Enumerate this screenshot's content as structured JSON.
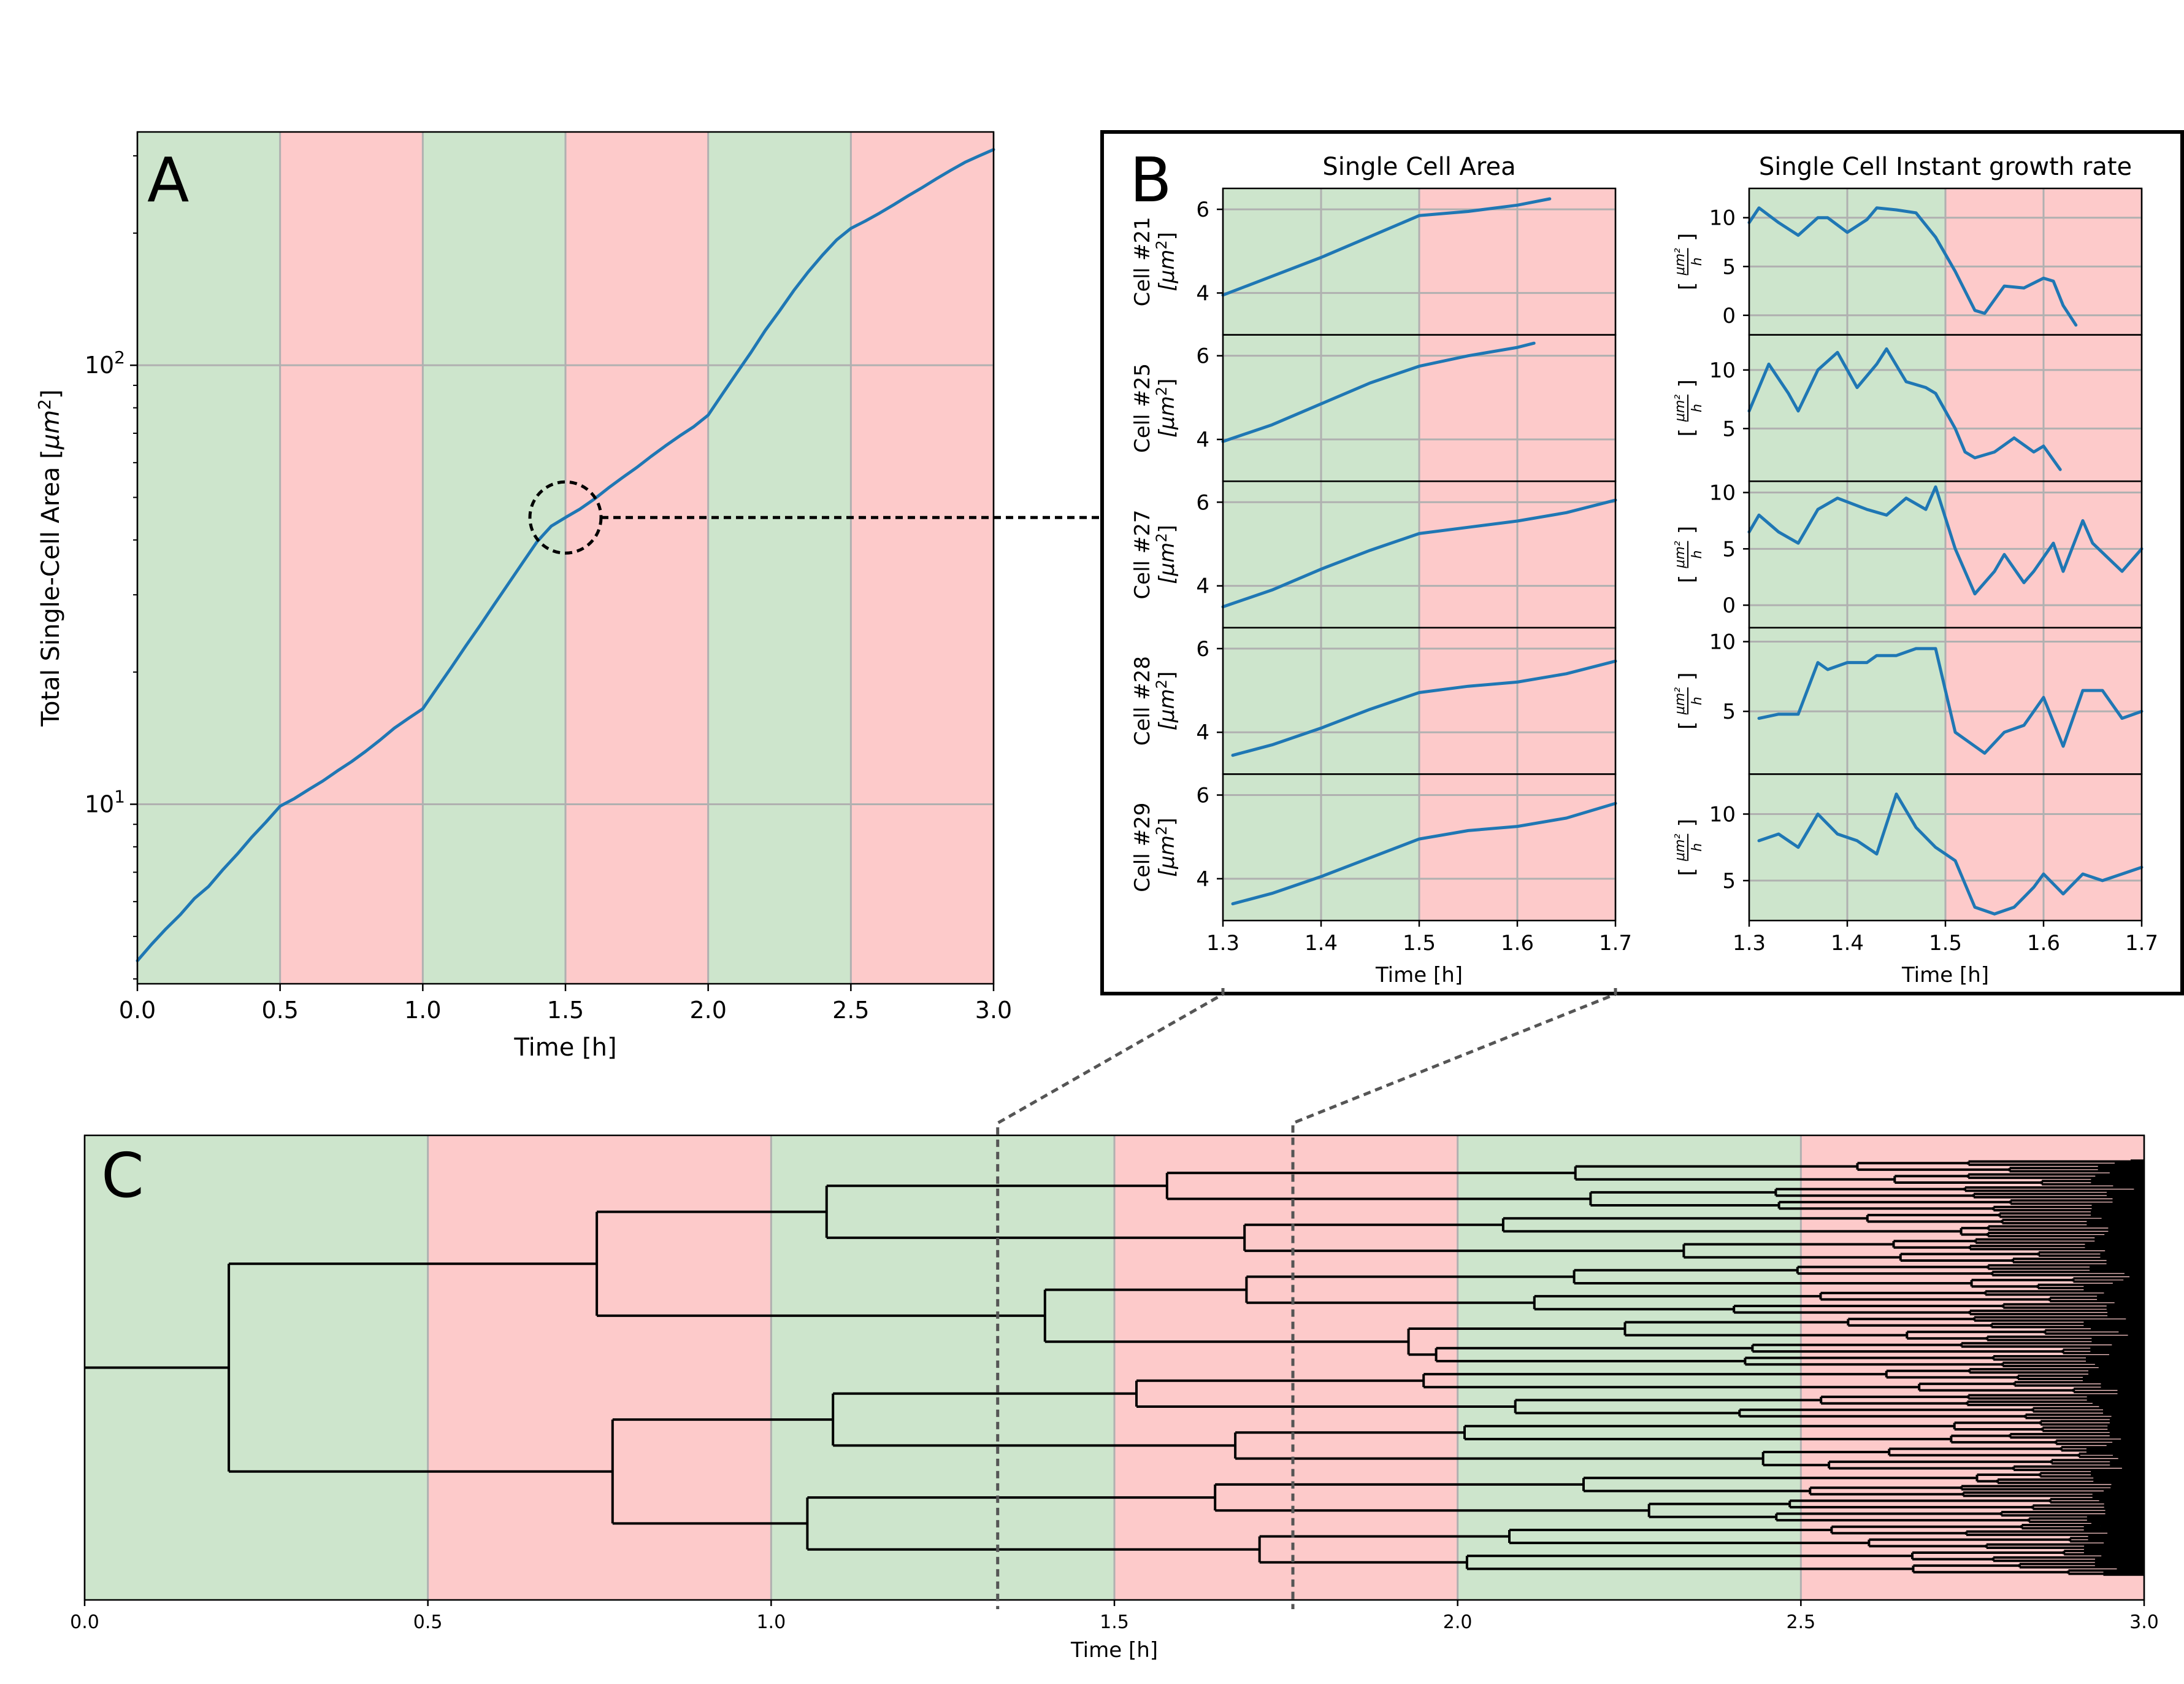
{
  "colors": {
    "green_band": "#cde5cc",
    "red_band": "#fdcaca",
    "line": "#1f77b4",
    "grid": "#b0b0b0"
  },
  "chart_data": [
    {
      "id": "A",
      "type": "line",
      "panel_label": "A",
      "title": "",
      "xlabel": "Time [h]",
      "ylabel": "Total Single-Cell Area [",
      "ylabel_unit": "μm",
      "ylabel_sup": "2",
      "ylabel_end": "]",
      "yscale": "log",
      "xlim": [
        0,
        3
      ],
      "ylim": [
        3.9,
        340
      ],
      "xticks": [
        0,
        0.5,
        1,
        1.5,
        2,
        2.5,
        3
      ],
      "xtick_labels": [
        "0.0",
        "0.5",
        "1.0",
        "1.5",
        "2.0",
        "2.5",
        "3.0"
      ],
      "yticks": [
        10,
        100
      ],
      "ytick_labels": [
        {
          "base": "10",
          "exp": "1"
        },
        {
          "base": "10",
          "exp": "2"
        }
      ],
      "bands": [
        {
          "from": 0,
          "to": 0.5,
          "state": "green"
        },
        {
          "from": 0.5,
          "to": 1.0,
          "state": "red"
        },
        {
          "from": 1.0,
          "to": 1.5,
          "state": "green"
        },
        {
          "from": 1.5,
          "to": 2.0,
          "state": "red"
        },
        {
          "from": 2.0,
          "to": 2.5,
          "state": "green"
        },
        {
          "from": 2.5,
          "to": 3.0,
          "state": "red"
        }
      ],
      "series": [
        {
          "name": "total area",
          "x": [
            0,
            0.05,
            0.1,
            0.15,
            0.2,
            0.25,
            0.3,
            0.35,
            0.4,
            0.45,
            0.5,
            0.55,
            0.6,
            0.65,
            0.7,
            0.75,
            0.8,
            0.85,
            0.9,
            0.95,
            1.0,
            1.05,
            1.1,
            1.15,
            1.2,
            1.25,
            1.3,
            1.35,
            1.4,
            1.45,
            1.5,
            1.55,
            1.6,
            1.65,
            1.7,
            1.75,
            1.8,
            1.85,
            1.9,
            1.95,
            2.0,
            2.05,
            2.1,
            2.15,
            2.2,
            2.25,
            2.3,
            2.35,
            2.4,
            2.45,
            2.5,
            2.55,
            2.6,
            2.65,
            2.7,
            2.75,
            2.8,
            2.85,
            2.9,
            2.95,
            3.0
          ],
          "y": [
            4.4,
            4.8,
            5.2,
            5.6,
            6.1,
            6.5,
            7.1,
            7.7,
            8.4,
            9.1,
            9.9,
            10.3,
            10.8,
            11.3,
            11.9,
            12.5,
            13.2,
            14.0,
            14.9,
            15.7,
            16.5,
            18.4,
            20.5,
            22.9,
            25.5,
            28.5,
            31.8,
            35.5,
            39.6,
            43.0,
            45.0,
            47.0,
            49.5,
            52.5,
            55.5,
            58.5,
            62.0,
            65.5,
            69.0,
            72.5,
            77.0,
            86.0,
            96.0,
            107,
            120,
            133,
            148,
            163,
            178,
            193,
            205,
            213,
            222,
            232,
            243,
            254,
            266,
            278,
            290,
            300,
            310
          ]
        }
      ],
      "annotation": "dashed circle at t≈1.5 linked to panel B"
    },
    {
      "id": "B_area",
      "type": "line",
      "panel_label": "B",
      "title": "Single Cell Area",
      "xlabel": "Time [h]",
      "xlim": [
        1.3,
        1.7
      ],
      "xticks": [
        1.3,
        1.4,
        1.5,
        1.6,
        1.7
      ],
      "xtick_labels": [
        "1.3",
        "1.4",
        "1.5",
        "1.6",
        "1.7"
      ],
      "bands": [
        {
          "from": 1.3,
          "to": 1.5,
          "state": "green"
        },
        {
          "from": 1.5,
          "to": 1.7,
          "state": "red"
        }
      ],
      "rows": [
        {
          "label": "Cell #21",
          "unit": "[μm",
          "unit_sup": "2",
          "unit_end": "]",
          "ylim": [
            3.0,
            6.5
          ],
          "yticks": [
            4,
            6
          ],
          "ytick_labels": [
            "4",
            "6"
          ],
          "x": [
            1.3,
            1.35,
            1.4,
            1.45,
            1.5,
            1.55,
            1.6,
            1.633
          ],
          "y": [
            3.95,
            4.4,
            4.85,
            5.35,
            5.85,
            5.95,
            6.1,
            6.25
          ]
        },
        {
          "label": "Cell #25",
          "unit": "[μm",
          "unit_sup": "2",
          "unit_end": "]",
          "ylim": [
            3.0,
            6.5
          ],
          "yticks": [
            4,
            6
          ],
          "ytick_labels": [
            "4",
            "6"
          ],
          "x": [
            1.3,
            1.35,
            1.4,
            1.45,
            1.5,
            1.55,
            1.6,
            1.617
          ],
          "y": [
            3.95,
            4.35,
            4.85,
            5.35,
            5.75,
            6.0,
            6.2,
            6.3
          ]
        },
        {
          "label": "Cell #27",
          "unit": "[μm",
          "unit_sup": "2",
          "unit_end": "]",
          "ylim": [
            3.0,
            6.5
          ],
          "yticks": [
            4,
            6
          ],
          "ytick_labels": [
            "4",
            "6"
          ],
          "x": [
            1.3,
            1.35,
            1.4,
            1.45,
            1.5,
            1.55,
            1.6,
            1.65,
            1.7
          ],
          "y": [
            3.5,
            3.9,
            4.4,
            4.85,
            5.25,
            5.4,
            5.55,
            5.75,
            6.05
          ]
        },
        {
          "label": "Cell #28",
          "unit": "[μm",
          "unit_sup": "2",
          "unit_end": "]",
          "ylim": [
            3.0,
            6.5
          ],
          "yticks": [
            4,
            6
          ],
          "ytick_labels": [
            "4",
            "6"
          ],
          "x": [
            1.31,
            1.35,
            1.4,
            1.45,
            1.5,
            1.55,
            1.6,
            1.65,
            1.7
          ],
          "y": [
            3.45,
            3.7,
            4.1,
            4.55,
            4.95,
            5.1,
            5.2,
            5.4,
            5.7
          ]
        },
        {
          "label": "Cell #29",
          "unit": "[μm",
          "unit_sup": "2",
          "unit_end": "]",
          "ylim": [
            3.0,
            6.5
          ],
          "yticks": [
            4,
            6
          ],
          "ytick_labels": [
            "4",
            "6"
          ],
          "x": [
            1.31,
            1.35,
            1.4,
            1.45,
            1.5,
            1.55,
            1.6,
            1.65,
            1.7
          ],
          "y": [
            3.4,
            3.65,
            4.05,
            4.5,
            4.95,
            5.15,
            5.25,
            5.45,
            5.8
          ]
        }
      ]
    },
    {
      "id": "B_rate",
      "type": "line",
      "title": "Single Cell Instant growth rate",
      "xlabel": "Time [h]",
      "xlim": [
        1.3,
        1.7
      ],
      "xticks": [
        1.3,
        1.4,
        1.5,
        1.6,
        1.7
      ],
      "xtick_labels": [
        "1.3",
        "1.4",
        "1.5",
        "1.6",
        "1.7"
      ],
      "bands": [
        {
          "from": 1.3,
          "to": 1.5,
          "state": "green"
        },
        {
          "from": 1.5,
          "to": 1.7,
          "state": "red"
        }
      ],
      "rows": [
        {
          "unit_num": "μm²",
          "unit_den": "h",
          "ylim": [
            -2,
            13
          ],
          "yticks": [
            0,
            5,
            10
          ],
          "ytick_labels": [
            "0",
            "5",
            "10"
          ],
          "x": [
            1.3,
            1.31,
            1.33,
            1.35,
            1.37,
            1.38,
            1.4,
            1.42,
            1.43,
            1.45,
            1.47,
            1.49,
            1.51,
            1.53,
            1.54,
            1.56,
            1.58,
            1.6,
            1.61,
            1.62,
            1.633
          ],
          "y": [
            9.5,
            11.0,
            9.5,
            8.2,
            10.0,
            10.0,
            8.5,
            9.8,
            11.0,
            10.8,
            10.5,
            8.0,
            4.5,
            0.5,
            0.2,
            3.0,
            2.8,
            3.8,
            3.5,
            1.0,
            -1.0
          ]
        },
        {
          "unit_num": "μm²",
          "unit_den": "h",
          "ylim": [
            0.5,
            13
          ],
          "yticks": [
            5,
            10
          ],
          "ytick_labels": [
            "5",
            "10"
          ],
          "x": [
            1.3,
            1.32,
            1.34,
            1.35,
            1.37,
            1.39,
            1.41,
            1.43,
            1.44,
            1.46,
            1.48,
            1.49,
            1.51,
            1.52,
            1.53,
            1.55,
            1.57,
            1.59,
            1.6,
            1.617
          ],
          "y": [
            6.5,
            10.5,
            8.0,
            6.5,
            10.0,
            11.5,
            8.5,
            10.5,
            11.8,
            9.0,
            8.5,
            8.0,
            5.0,
            3.0,
            2.5,
            3.0,
            4.2,
            3.0,
            3.5,
            1.5
          ]
        },
        {
          "unit_num": "μm²",
          "unit_den": "h",
          "ylim": [
            -2,
            11
          ],
          "yticks": [
            0,
            5,
            10
          ],
          "ytick_labels": [
            "0",
            "5",
            "10"
          ],
          "x": [
            1.3,
            1.31,
            1.33,
            1.35,
            1.37,
            1.39,
            1.42,
            1.44,
            1.46,
            1.48,
            1.49,
            1.51,
            1.53,
            1.55,
            1.56,
            1.58,
            1.59,
            1.61,
            1.62,
            1.64,
            1.65,
            1.68,
            1.7
          ],
          "y": [
            6.5,
            8.0,
            6.5,
            5.5,
            8.5,
            9.5,
            8.5,
            8.0,
            9.5,
            8.5,
            10.5,
            5.0,
            1.0,
            3.0,
            4.5,
            2.0,
            3.0,
            5.5,
            3.0,
            7.5,
            5.5,
            3.0,
            5.0
          ]
        },
        {
          "unit_num": "μm²",
          "unit_den": "h",
          "ylim": [
            0.5,
            11
          ],
          "yticks": [
            5,
            10
          ],
          "ytick_labels": [
            "5",
            "10"
          ],
          "x": [
            1.31,
            1.33,
            1.35,
            1.37,
            1.38,
            1.4,
            1.42,
            1.43,
            1.45,
            1.47,
            1.49,
            1.51,
            1.53,
            1.54,
            1.56,
            1.58,
            1.6,
            1.62,
            1.64,
            1.66,
            1.68,
            1.7
          ],
          "y": [
            4.5,
            4.8,
            4.8,
            8.5,
            8.0,
            8.5,
            8.5,
            9.0,
            9.0,
            9.5,
            9.5,
            3.5,
            2.5,
            2.0,
            3.5,
            4.0,
            6.0,
            2.5,
            6.5,
            6.5,
            4.5,
            5.0
          ]
        },
        {
          "unit_num": "μm²",
          "unit_den": "h",
          "ylim": [
            2,
            13
          ],
          "yticks": [
            5,
            10
          ],
          "ytick_labels": [
            "5",
            "10"
          ],
          "x": [
            1.31,
            1.33,
            1.35,
            1.37,
            1.39,
            1.41,
            1.43,
            1.45,
            1.47,
            1.49,
            1.51,
            1.53,
            1.55,
            1.57,
            1.59,
            1.6,
            1.62,
            1.64,
            1.66,
            1.68,
            1.7
          ],
          "y": [
            8.0,
            8.5,
            7.5,
            10.0,
            8.5,
            8.0,
            7.0,
            11.5,
            9.0,
            7.5,
            6.5,
            3.0,
            2.5,
            3.0,
            4.5,
            5.5,
            4.0,
            5.5,
            5.0,
            5.5,
            6.0
          ]
        }
      ]
    },
    {
      "id": "C",
      "type": "tree",
      "panel_label": "C",
      "title": "",
      "xlabel": "Time [h]",
      "xlim": [
        0,
        3
      ],
      "xticks": [
        0,
        0.5,
        1,
        1.5,
        2,
        2.5,
        3
      ],
      "xtick_labels": [
        "0.0",
        "0.5",
        "1.0",
        "1.5",
        "2.0",
        "2.5",
        "3.0"
      ],
      "bands": [
        {
          "from": 0,
          "to": 0.5,
          "state": "green"
        },
        {
          "from": 0.5,
          "to": 1.0,
          "state": "red"
        },
        {
          "from": 1.0,
          "to": 1.5,
          "state": "green"
        },
        {
          "from": 1.5,
          "to": 2.0,
          "state": "red"
        },
        {
          "from": 2.0,
          "to": 2.5,
          "state": "green"
        },
        {
          "from": 2.5,
          "to": 3.0,
          "state": "red"
        }
      ],
      "split_times": [
        0.21,
        0.72,
        0.77,
        1.08,
        1.07,
        1.31,
        1.08,
        1.76,
        1.6,
        1.64,
        1.5,
        1.72,
        1.71,
        1.57
      ],
      "zoom_window": [
        1.33,
        1.76
      ],
      "description": "lineage tree of single cells dividing over time"
    }
  ]
}
